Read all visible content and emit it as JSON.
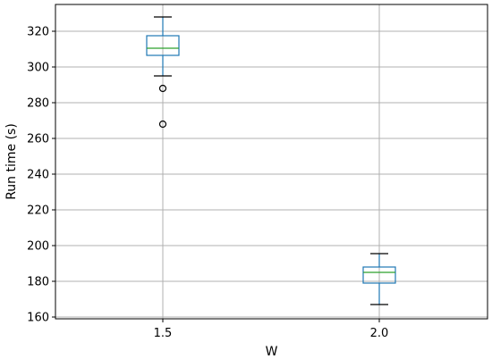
{
  "chart_data": {
    "type": "boxplot",
    "title": "",
    "xlabel": "W",
    "ylabel": "Run time (s)",
    "categories": [
      "1.5",
      "2.0"
    ],
    "ylim": [
      159,
      335
    ],
    "yticks": [
      160,
      180,
      200,
      220,
      240,
      260,
      280,
      300,
      320
    ],
    "grid": true,
    "colors": {
      "box": "#1f77b4",
      "median": "#2ca02c",
      "whisker_cap": "#000000",
      "grid": "#b0b0b0"
    },
    "boxes": [
      {
        "category": "1.5",
        "whisker_low": 295,
        "q1": 306.5,
        "median": 310.5,
        "q3": 317.5,
        "whisker_high": 328,
        "outliers": [
          288,
          268
        ]
      },
      {
        "category": "2.0",
        "whisker_low": 167,
        "q1": 179,
        "median": 185,
        "q3": 188,
        "whisker_high": 195.5,
        "outliers": []
      }
    ]
  }
}
